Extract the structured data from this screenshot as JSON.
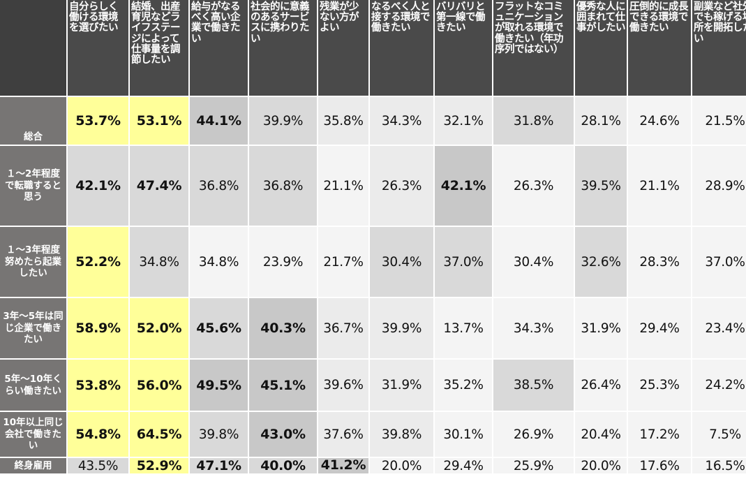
{
  "chart_data": {
    "type": "table",
    "columns": [
      "自分らしく働ける環境を選びたい",
      "結婚、出産育児などライフステージによって仕事量を調節したい",
      "給与がなるべく高い企業で働きたい",
      "社会的に意義のあるサービスに携わりたい",
      "残業が少ない方がよい",
      "なるべく人と接する環境で働きたい",
      "バリバリと第一線で働きたい",
      "フラットなコミュニケーションが取れる環境で働きたい（年功序列ではない）",
      "優秀な人に囲まれて仕事がしたい",
      "圧倒的に成長できる環境で働きたい",
      "副業など社外でも稼げる場所を開拓したい"
    ],
    "rows": [
      {
        "label": "総合",
        "values": [
          "53.7%",
          "53.1%",
          "44.1%",
          "39.9%",
          "35.8%",
          "34.3%",
          "32.1%",
          "31.8%",
          "28.1%",
          "24.6%",
          "21.5%"
        ]
      },
      {
        "label": "１～2年程度で転職すると思う",
        "values": [
          "42.1%",
          "47.4%",
          "36.8%",
          "36.8%",
          "21.1%",
          "26.3%",
          "42.1%",
          "26.3%",
          "39.5%",
          "21.1%",
          "28.9%"
        ]
      },
      {
        "label": "１～3年程度努めたら起業したい",
        "values": [
          "52.2%",
          "34.8%",
          "34.8%",
          "23.9%",
          "21.7%",
          "30.4%",
          "37.0%",
          "30.4%",
          "32.6%",
          "28.3%",
          "37.0%"
        ]
      },
      {
        "label": "3年～5年は同じ企業で働きたい",
        "values": [
          "58.9%",
          "52.0%",
          "45.6%",
          "40.3%",
          "36.7%",
          "39.9%",
          "13.7%",
          "34.3%",
          "31.9%",
          "29.4%",
          "23.4%"
        ]
      },
      {
        "label": "5年～10年くらい働きたい",
        "values": [
          "53.8%",
          "56.0%",
          "49.5%",
          "45.1%",
          "39.6%",
          "31.9%",
          "35.2%",
          "38.5%",
          "26.4%",
          "25.3%",
          "24.2%"
        ]
      },
      {
        "label": "10年以上同じ会社で働きたい",
        "values": [
          "54.8%",
          "64.5%",
          "39.8%",
          "43.0%",
          "37.6%",
          "39.8%",
          "30.1%",
          "26.9%",
          "20.4%",
          "17.2%",
          "7.5%"
        ]
      },
      {
        "label": "終身雇用",
        "values": [
          "43.5%",
          "52.9%",
          "47.1%",
          "40.0%",
          "41.2%",
          "20.0%",
          "29.4%",
          "25.9%",
          "20.0%",
          "17.6%",
          "16.5%"
        ]
      }
    ],
    "bold": [
      [
        1,
        1,
        1,
        0,
        0,
        0,
        0,
        0,
        0,
        0,
        0
      ],
      [
        1,
        1,
        0,
        0,
        0,
        0,
        1,
        0,
        0,
        0,
        0
      ],
      [
        1,
        0,
        0,
        0,
        0,
        0,
        0,
        0,
        0,
        0,
        0
      ],
      [
        1,
        1,
        1,
        1,
        0,
        0,
        0,
        0,
        0,
        0,
        0
      ],
      [
        1,
        1,
        1,
        1,
        0,
        0,
        0,
        0,
        0,
        0,
        0
      ],
      [
        1,
        1,
        0,
        1,
        0,
        0,
        0,
        0,
        0,
        0,
        0
      ],
      [
        0,
        1,
        1,
        1,
        1,
        0,
        0,
        0,
        0,
        0,
        0
      ]
    ],
    "cell_colors": [
      [
        "#ffff99",
        "#ffff99",
        "#c8c8c8",
        "#d9d9d9",
        "#ebebeb",
        "#ebebeb",
        "#ebebeb",
        "#d9d9d9",
        "#ebebeb",
        "#f4f4f4",
        "#f4f4f4"
      ],
      [
        "#d9d9d9",
        "#d9d9d9",
        "#d9d9d9",
        "#d9d9d9",
        "#f4f4f4",
        "#ebebeb",
        "#c8c8c8",
        "#f4f4f4",
        "#d9d9d9",
        "#f4f4f4",
        "#f4f4f4"
      ],
      [
        "#ffff99",
        "#d9d9d9",
        "#f4f4f4",
        "#f4f4f4",
        "#f4f4f4",
        "#d9d9d9",
        "#d9d9d9",
        "#f4f4f4",
        "#d9d9d9",
        "#f4f4f4",
        "#f4f4f4"
      ],
      [
        "#ffff99",
        "#ffff99",
        "#d9d9d9",
        "#c8c8c8",
        "#ebebeb",
        "#ebebeb",
        "#f4f4f4",
        "#f4f4f4",
        "#f4f4f4",
        "#f4f4f4",
        "#f4f4f4"
      ],
      [
        "#ffff99",
        "#ffff99",
        "#c8c8c8",
        "#c8c8c8",
        "#ebebeb",
        "#ebebeb",
        "#f4f4f4",
        "#d9d9d9",
        "#f4f4f4",
        "#f4f4f4",
        "#f4f4f4"
      ],
      [
        "#ffff99",
        "#ffff99",
        "#d9d9d9",
        "#c8c8c8",
        "#ebebeb",
        "#ebebeb",
        "#f4f4f4",
        "#f4f4f4",
        "#f4f4f4",
        "#f4f4f4",
        "#f4f4f4"
      ],
      [
        "#d9d9d9",
        "#ffff99",
        "#d9d9d9",
        "#d9d9d9",
        "#c8c8c8",
        "#f4f4f4",
        "#f4f4f4",
        "#f4f4f4",
        "#f4f4f4",
        "#f4f4f4",
        "#f4f4f4"
      ]
    ],
    "header_color": "#4a4a4a",
    "row_label_color": "#777574"
  }
}
